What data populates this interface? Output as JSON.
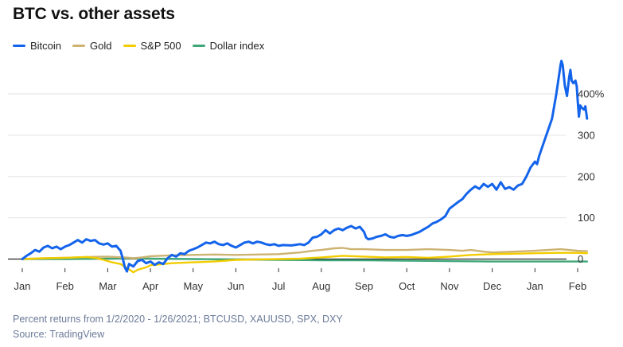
{
  "chart_data": {
    "type": "line",
    "title": "BTC vs. other assets",
    "xlabel": "",
    "ylabel": "",
    "x_tick_labels": [
      "Jan",
      "Feb",
      "Mar",
      "Apr",
      "May",
      "Jun",
      "Jul",
      "Aug",
      "Sep",
      "Oct",
      "Nov",
      "Dec",
      "Jan",
      "Feb"
    ],
    "y_ticks": [
      0,
      100,
      200,
      300,
      400
    ],
    "y_tick_labels": [
      "0",
      "100",
      "200",
      "300",
      "400%"
    ],
    "ylim": [
      -35,
      490
    ],
    "xlim": [
      0,
      13
    ],
    "x_unit": "months since Jan 1, 2020",
    "legend_position": "top-left",
    "series": [
      {
        "name": "Bitcoin",
        "color": "#1464eb",
        "points": [
          [
            0.0,
            0
          ],
          [
            0.1,
            8
          ],
          [
            0.2,
            14
          ],
          [
            0.3,
            22
          ],
          [
            0.4,
            18
          ],
          [
            0.5,
            28
          ],
          [
            0.6,
            32
          ],
          [
            0.7,
            26
          ],
          [
            0.8,
            30
          ],
          [
            0.9,
            24
          ],
          [
            1.0,
            30
          ],
          [
            1.1,
            34
          ],
          [
            1.2,
            40
          ],
          [
            1.3,
            46
          ],
          [
            1.4,
            40
          ],
          [
            1.5,
            48
          ],
          [
            1.6,
            44
          ],
          [
            1.7,
            46
          ],
          [
            1.8,
            38
          ],
          [
            1.9,
            35
          ],
          [
            2.0,
            38
          ],
          [
            2.1,
            30
          ],
          [
            2.2,
            32
          ],
          [
            2.3,
            20
          ],
          [
            2.35,
            2
          ],
          [
            2.4,
            -20
          ],
          [
            2.45,
            -30
          ],
          [
            2.5,
            -12
          ],
          [
            2.6,
            -18
          ],
          [
            2.7,
            -5
          ],
          [
            2.8,
            -2
          ],
          [
            2.9,
            -10
          ],
          [
            3.0,
            -6
          ],
          [
            3.1,
            -14
          ],
          [
            3.2,
            -8
          ],
          [
            3.3,
            -12
          ],
          [
            3.4,
            2
          ],
          [
            3.5,
            10
          ],
          [
            3.6,
            6
          ],
          [
            3.7,
            14
          ],
          [
            3.8,
            12
          ],
          [
            3.9,
            20
          ],
          [
            4.0,
            24
          ],
          [
            4.1,
            28
          ],
          [
            4.2,
            34
          ],
          [
            4.3,
            40
          ],
          [
            4.4,
            38
          ],
          [
            4.5,
            42
          ],
          [
            4.6,
            36
          ],
          [
            4.7,
            34
          ],
          [
            4.8,
            38
          ],
          [
            4.9,
            32
          ],
          [
            5.0,
            28
          ],
          [
            5.1,
            34
          ],
          [
            5.2,
            40
          ],
          [
            5.3,
            42
          ],
          [
            5.4,
            38
          ],
          [
            5.5,
            42
          ],
          [
            5.6,
            40
          ],
          [
            5.7,
            36
          ],
          [
            5.8,
            34
          ],
          [
            5.9,
            36
          ],
          [
            6.0,
            32
          ],
          [
            6.1,
            34
          ],
          [
            6.3,
            33
          ],
          [
            6.5,
            36
          ],
          [
            6.6,
            34
          ],
          [
            6.7,
            40
          ],
          [
            6.8,
            52
          ],
          [
            6.9,
            54
          ],
          [
            7.0,
            60
          ],
          [
            7.1,
            70
          ],
          [
            7.2,
            62
          ],
          [
            7.3,
            70
          ],
          [
            7.4,
            74
          ],
          [
            7.5,
            70
          ],
          [
            7.6,
            76
          ],
          [
            7.7,
            80
          ],
          [
            7.8,
            74
          ],
          [
            7.9,
            78
          ],
          [
            8.0,
            66
          ],
          [
            8.05,
            52
          ],
          [
            8.1,
            48
          ],
          [
            8.2,
            50
          ],
          [
            8.3,
            54
          ],
          [
            8.4,
            56
          ],
          [
            8.5,
            60
          ],
          [
            8.6,
            54
          ],
          [
            8.7,
            52
          ],
          [
            8.8,
            56
          ],
          [
            8.9,
            58
          ],
          [
            9.0,
            56
          ],
          [
            9.1,
            58
          ],
          [
            9.2,
            62
          ],
          [
            9.3,
            66
          ],
          [
            9.4,
            72
          ],
          [
            9.5,
            78
          ],
          [
            9.6,
            86
          ],
          [
            9.7,
            90
          ],
          [
            9.8,
            96
          ],
          [
            9.9,
            104
          ],
          [
            10.0,
            122
          ],
          [
            10.1,
            130
          ],
          [
            10.2,
            138
          ],
          [
            10.3,
            145
          ],
          [
            10.4,
            158
          ],
          [
            10.5,
            168
          ],
          [
            10.6,
            176
          ],
          [
            10.7,
            170
          ],
          [
            10.8,
            182
          ],
          [
            10.9,
            175
          ],
          [
            11.0,
            182
          ],
          [
            11.1,
            168
          ],
          [
            11.2,
            186
          ],
          [
            11.3,
            170
          ],
          [
            11.4,
            174
          ],
          [
            11.5,
            168
          ],
          [
            11.6,
            178
          ],
          [
            11.7,
            182
          ],
          [
            11.8,
            200
          ],
          [
            11.9,
            222
          ],
          [
            12.0,
            236
          ],
          [
            12.05,
            230
          ],
          [
            12.1,
            250
          ],
          [
            12.2,
            280
          ],
          [
            12.3,
            310
          ],
          [
            12.4,
            340
          ],
          [
            12.5,
            400
          ],
          [
            12.6,
            470
          ],
          [
            12.62,
            480
          ],
          [
            12.65,
            470
          ],
          [
            12.7,
            420
          ],
          [
            12.75,
            395
          ],
          [
            12.8,
            440
          ],
          [
            12.83,
            458
          ],
          [
            12.86,
            432
          ],
          [
            12.9,
            426
          ],
          [
            12.95,
            432
          ],
          [
            12.98,
            418
          ],
          [
            13.0,
            386
          ],
          [
            13.03,
            345
          ],
          [
            13.06,
            372
          ],
          [
            13.1,
            366
          ],
          [
            13.15,
            362
          ],
          [
            13.18,
            370
          ],
          [
            13.22,
            340
          ]
        ]
      },
      {
        "name": "Gold",
        "color": "#cdb272",
        "points": [
          [
            0.0,
            0
          ],
          [
            0.5,
            2
          ],
          [
            1.0,
            3
          ],
          [
            1.5,
            5
          ],
          [
            2.0,
            6
          ],
          [
            2.4,
            4
          ],
          [
            2.6,
            2
          ],
          [
            2.8,
            4
          ],
          [
            3.0,
            7
          ],
          [
            3.5,
            9
          ],
          [
            4.0,
            10
          ],
          [
            4.5,
            11
          ],
          [
            5.0,
            10
          ],
          [
            5.5,
            11
          ],
          [
            6.0,
            12
          ],
          [
            6.5,
            16
          ],
          [
            6.8,
            20
          ],
          [
            7.0,
            22
          ],
          [
            7.3,
            26
          ],
          [
            7.5,
            27
          ],
          [
            7.7,
            24
          ],
          [
            8.0,
            24
          ],
          [
            8.5,
            22
          ],
          [
            9.0,
            22
          ],
          [
            9.5,
            24
          ],
          [
            10.0,
            22
          ],
          [
            10.3,
            20
          ],
          [
            10.5,
            22
          ],
          [
            10.8,
            18
          ],
          [
            11.0,
            16
          ],
          [
            11.5,
            18
          ],
          [
            12.0,
            20
          ],
          [
            12.3,
            22
          ],
          [
            12.6,
            24
          ],
          [
            12.8,
            22
          ],
          [
            13.0,
            20
          ],
          [
            13.22,
            19
          ]
        ]
      },
      {
        "name": "S&P 500",
        "color": "#f2cc00",
        "points": [
          [
            0.0,
            0
          ],
          [
            0.5,
            2
          ],
          [
            1.0,
            3
          ],
          [
            1.5,
            5
          ],
          [
            1.7,
            3
          ],
          [
            1.9,
            -2
          ],
          [
            2.1,
            -8
          ],
          [
            2.3,
            -12
          ],
          [
            2.5,
            -25
          ],
          [
            2.6,
            -32
          ],
          [
            2.7,
            -26
          ],
          [
            2.9,
            -20
          ],
          [
            3.0,
            -15
          ],
          [
            3.5,
            -10
          ],
          [
            4.0,
            -8
          ],
          [
            4.5,
            -6
          ],
          [
            5.0,
            -2
          ],
          [
            5.5,
            -1
          ],
          [
            6.0,
            0
          ],
          [
            6.5,
            1
          ],
          [
            7.0,
            4
          ],
          [
            7.5,
            8
          ],
          [
            8.0,
            6
          ],
          [
            8.5,
            4
          ],
          [
            9.0,
            5
          ],
          [
            9.5,
            3
          ],
          [
            10.0,
            6
          ],
          [
            10.5,
            10
          ],
          [
            11.0,
            12
          ],
          [
            11.5,
            13
          ],
          [
            12.0,
            14
          ],
          [
            12.5,
            15
          ],
          [
            13.0,
            15
          ],
          [
            13.22,
            14
          ]
        ]
      },
      {
        "name": "Dollar index",
        "color": "#3ea678",
        "points": [
          [
            0.0,
            0
          ],
          [
            1.0,
            0
          ],
          [
            2.0,
            1
          ],
          [
            2.5,
            2
          ],
          [
            3.0,
            1
          ],
          [
            4.0,
            0
          ],
          [
            5.0,
            -1
          ],
          [
            6.0,
            -2
          ],
          [
            7.0,
            -3
          ],
          [
            8.0,
            -3
          ],
          [
            9.0,
            -4
          ],
          [
            10.0,
            -5
          ],
          [
            11.0,
            -6
          ],
          [
            12.0,
            -6
          ],
          [
            13.22,
            -6
          ]
        ]
      }
    ]
  },
  "footnote": {
    "line1": "Percent returns from 1/2/2020 - 1/26/2021; BTCUSD, XAUUSD, SPX, DXY",
    "line2": "Source: TradingView"
  }
}
